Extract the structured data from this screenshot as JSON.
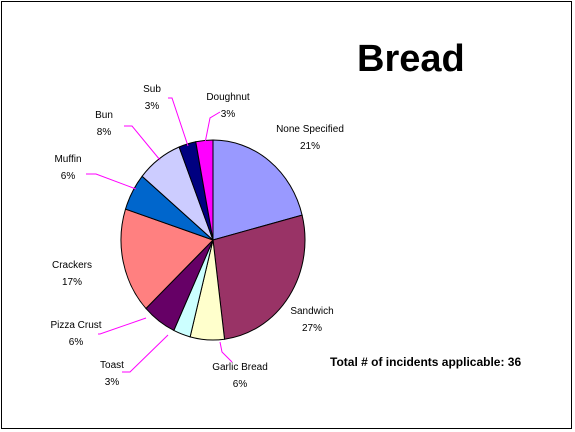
{
  "title": "Bread",
  "note": "Total # of incidents applicable: 36",
  "chart_data": {
    "type": "pie",
    "title": "Bread",
    "slices": [
      {
        "label": "None Specified",
        "percent": "21%",
        "value": 21,
        "color": "#9999ff"
      },
      {
        "label": "Sandwich",
        "percent": "27%",
        "value": 27,
        "color": "#993366"
      },
      {
        "label": "Garlic Bread",
        "percent": "6%",
        "value": 6,
        "color": "#ffffcc"
      },
      {
        "label": "Toast",
        "percent": "3%",
        "value": 3,
        "color": "#ccffff"
      },
      {
        "label": "Pizza Crust",
        "percent": "6%",
        "value": 6,
        "color": "#660066"
      },
      {
        "label": "Crackers",
        "percent": "17%",
        "value": 17,
        "color": "#ff8080"
      },
      {
        "label": "Muffin",
        "percent": "6%",
        "value": 6,
        "color": "#0066cc"
      },
      {
        "label": "Bun",
        "percent": "8%",
        "value": 8,
        "color": "#ccccff"
      },
      {
        "label": "Sub",
        "percent": "3%",
        "value": 3,
        "color": "#000080"
      },
      {
        "label": "Doughnut",
        "percent": "3%",
        "value": 3,
        "color": "#ff00ff"
      }
    ],
    "label_line_color": "#ff00ff",
    "legend": "none"
  }
}
